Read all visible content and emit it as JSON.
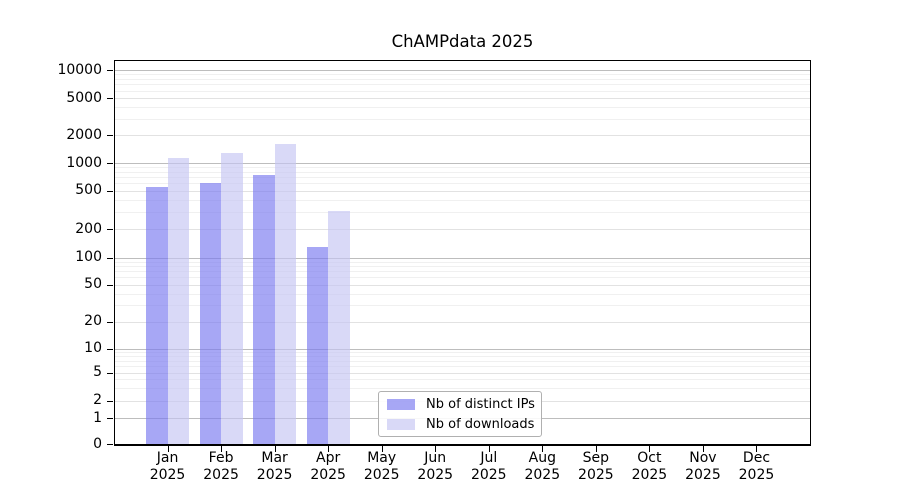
{
  "chart_data": {
    "type": "bar",
    "title": "ChAMPdata 2025",
    "scale": "symlog",
    "categories": [
      "Jan",
      "Feb",
      "Mar",
      "Apr",
      "May",
      "Jun",
      "Jul",
      "Aug",
      "Sep",
      "Oct",
      "Nov",
      "Dec"
    ],
    "category_year": "2025",
    "y_ticks": [
      0,
      1,
      2,
      5,
      10,
      20,
      50,
      100,
      200,
      500,
      1000,
      2000,
      5000,
      10000
    ],
    "ylim": [
      0,
      10000
    ],
    "xlabel": "",
    "ylabel": "",
    "grid": "on",
    "legend_position": "bottom-center-inside",
    "bar_opacity": 0.65,
    "series": [
      {
        "name": "Nb of distinct IPs",
        "color": "#7878f0",
        "perceived_color": "#a8a8f5",
        "values": [
          550,
          610,
          750,
          130,
          0,
          0,
          0,
          0,
          0,
          0,
          0,
          0
        ]
      },
      {
        "name": "Nb of downloads",
        "color": "#c4c4f2",
        "perceived_color": "#d8d8f7",
        "values": [
          1150,
          1280,
          1600,
          310,
          0,
          0,
          0,
          0,
          0,
          0,
          0,
          0
        ]
      }
    ]
  }
}
